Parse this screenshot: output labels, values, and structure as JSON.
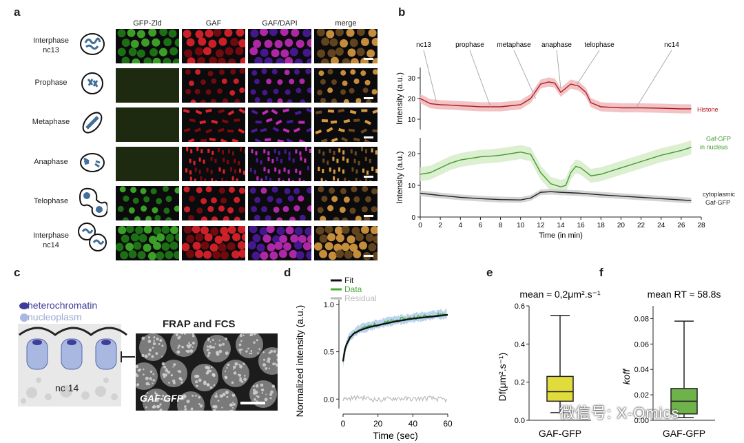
{
  "panel_letters": {
    "a": "a",
    "b": "b",
    "c": "c",
    "d": "d",
    "e": "e",
    "f": "f"
  },
  "panel_a": {
    "columns": [
      "GFP-Zld",
      "GAF",
      "GAF/DAPI",
      "merge"
    ],
    "rows": [
      {
        "line1": "Interphase",
        "line2": "nc13",
        "icon": "nucleus-interphase-icon"
      },
      {
        "line1": "Prophase",
        "line2": "",
        "icon": "nucleus-prophase-icon"
      },
      {
        "line1": "Metaphase",
        "line2": "",
        "icon": "nucleus-metaphase-icon"
      },
      {
        "line1": "Anaphase",
        "line2": "",
        "icon": "nucleus-anaphase-icon"
      },
      {
        "line1": "Telophase",
        "line2": "",
        "icon": "nucleus-telophase-icon"
      },
      {
        "line1": "Interphase",
        "line2": "nc14",
        "icon": "nucleus-nc14-icon"
      }
    ],
    "colors": {
      "gfp": "#2f8a1e",
      "gaf": "#c8131a",
      "dapi": "#7a2bd0",
      "merge": "#c07a3a"
    }
  },
  "chart_data": [
    {
      "type": "line",
      "panel": "b",
      "xlabel": "Time (in min)",
      "xlim": [
        0,
        28
      ],
      "xticks": [
        0,
        2,
        4,
        6,
        8,
        10,
        12,
        14,
        16,
        18,
        20,
        22,
        24,
        26,
        28
      ],
      "stage_labels": [
        "nc13",
        "prophase",
        "metaphase",
        "anaphase",
        "telophase",
        "nc14"
      ],
      "top_axis": {
        "ylabel": "Intensity (a.u.)",
        "ylim": [
          5,
          35
        ],
        "yticks": [
          10,
          20,
          30
        ]
      },
      "bottom_axis": {
        "ylabel": "Intensity (a.u.)",
        "ylim": [
          0,
          25
        ],
        "yticks": [
          0,
          10,
          20
        ]
      },
      "series": [
        {
          "name": "Histone",
          "axis": "top",
          "color": "#b0161e",
          "band": "#eeb9bb",
          "x": [
            0,
            1,
            2,
            3,
            4,
            5,
            6,
            7,
            8,
            9,
            10,
            11,
            12,
            12.8,
            13.4,
            14,
            14.5,
            15,
            15.8,
            16.5,
            17,
            18,
            20,
            22,
            24,
            26,
            27
          ],
          "y": [
            20,
            17.5,
            17,
            16.8,
            16.5,
            16.3,
            16,
            16,
            16,
            16.5,
            17,
            20,
            27,
            28,
            27.5,
            23,
            25,
            27,
            26,
            23,
            18,
            16,
            15.5,
            15.5,
            15.3,
            15,
            15
          ]
        },
        {
          "name": "Gaf-GFP in nucleus",
          "axis": "bottom",
          "color": "#3f9b2c",
          "band": "#d6ecc9",
          "x": [
            0,
            1,
            2,
            3,
            4,
            5,
            6,
            7,
            8,
            9,
            10,
            11,
            12,
            13,
            14,
            14.5,
            15,
            15.5,
            16,
            17,
            18,
            20,
            22,
            24,
            26,
            27
          ],
          "y": [
            13.5,
            14,
            15.5,
            17,
            18,
            18.5,
            19,
            19.2,
            19.5,
            20,
            20.5,
            19.8,
            14,
            10.5,
            9.5,
            10,
            14,
            16,
            15.5,
            13,
            13.5,
            15.5,
            17.5,
            19.5,
            21,
            22
          ]
        },
        {
          "name": "cytoplasmic Gaf-GFP",
          "axis": "bottom",
          "color": "#222222",
          "band": "#cccccc",
          "x": [
            0,
            2,
            4,
            6,
            8,
            10,
            11,
            12,
            13,
            14,
            16,
            18,
            20,
            22,
            24,
            26,
            27
          ],
          "y": [
            7.5,
            6.8,
            6.2,
            5.8,
            5.5,
            5.4,
            6,
            7.8,
            8,
            7.8,
            7.5,
            7,
            6.6,
            6.2,
            5.8,
            5.4,
            5.2
          ]
        }
      ]
    },
    {
      "type": "line",
      "panel": "d",
      "xlabel": "Time (sec)",
      "ylabel": "Normalized intensity (a.u.)",
      "xlim": [
        0,
        60
      ],
      "ylim": [
        -0.1,
        1.05
      ],
      "xticks": [
        0,
        20,
        40,
        60
      ],
      "yticks": [
        0.0,
        0.5,
        1.0
      ],
      "series": [
        {
          "name": "Fit",
          "color": "#111111",
          "x": [
            0,
            1,
            2,
            4,
            6,
            10,
            15,
            20,
            30,
            40,
            50,
            60
          ],
          "y": [
            0.4,
            0.52,
            0.58,
            0.65,
            0.69,
            0.73,
            0.76,
            0.78,
            0.82,
            0.85,
            0.87,
            0.89
          ]
        },
        {
          "name": "Data",
          "color": "#4aa83a",
          "x": [
            0,
            1,
            2,
            4,
            6,
            10,
            15,
            20,
            30,
            40,
            50,
            60
          ],
          "y": [
            0.38,
            0.5,
            0.58,
            0.66,
            0.7,
            0.74,
            0.77,
            0.79,
            0.83,
            0.86,
            0.88,
            0.9
          ]
        },
        {
          "name": "Residual",
          "color": "#bbbbbb",
          "x": [
            0,
            10,
            20,
            30,
            40,
            50,
            60
          ],
          "y": [
            0.0,
            0.02,
            -0.01,
            0.01,
            0.0,
            0.01,
            -0.01
          ]
        }
      ]
    },
    {
      "type": "box",
      "panel": "e",
      "category": "GAF-GFP",
      "ylabel": "Df(μm².s⁻¹)",
      "ylim": [
        0,
        0.6
      ],
      "yticks": [
        0.0,
        0.2,
        0.4,
        0.6
      ],
      "min": 0.04,
      "q1": 0.1,
      "median": 0.15,
      "q3": 0.23,
      "max": 0.55,
      "fill": "#e0dc3b",
      "annotation": "mean ≈ 0,2μm².s⁻¹"
    },
    {
      "type": "box",
      "panel": "f",
      "category": "GAF-GFP",
      "ylabel": "k_off",
      "ylim": [
        0,
        0.09
      ],
      "yticks": [
        0.0,
        0.02,
        0.04,
        0.06,
        0.08
      ],
      "min": 0.002,
      "q1": 0.005,
      "median": 0.015,
      "q3": 0.025,
      "max": 0.078,
      "fill": "#6fb14a",
      "annotation": "mean RT ≈ 58.8s"
    }
  ],
  "panel_c": {
    "legend": [
      "heterochromatin",
      "nucleoplasm"
    ],
    "nc_label": "nc 14",
    "title": "FRAP and FCS",
    "image_label": "GAF-GFP",
    "colors": {
      "heterochromatin": "#3e3e9a",
      "nucleoplasm": "#a8b8e0"
    }
  },
  "watermark": "微信号: X-Omics"
}
